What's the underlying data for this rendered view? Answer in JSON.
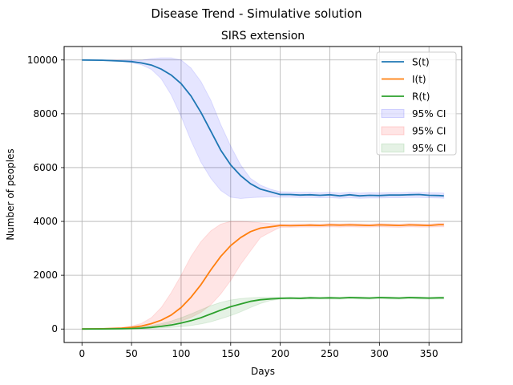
{
  "chart_data": {
    "type": "line",
    "suptitle": "Disease Trend - Simulative solution",
    "title": "SIRS extension",
    "xlabel": "Days",
    "ylabel": "Number of peoples",
    "xlim": [
      -18,
      383
    ],
    "ylim": [
      -500,
      10500
    ],
    "xticks": [
      0,
      50,
      100,
      150,
      200,
      250,
      300,
      350
    ],
    "yticks": [
      0,
      2000,
      4000,
      6000,
      8000,
      10000
    ],
    "grid": true,
    "legend_position": "top-right",
    "series": [
      {
        "name": "S(t)",
        "color": "#1f77b4",
        "x": [
          0,
          20,
          40,
          50,
          60,
          70,
          80,
          90,
          100,
          110,
          120,
          130,
          140,
          150,
          160,
          170,
          180,
          190,
          200,
          210,
          220,
          230,
          240,
          250,
          260,
          270,
          280,
          290,
          300,
          310,
          320,
          330,
          340,
          350,
          360,
          365
        ],
        "values": [
          10000,
          9990,
          9960,
          9940,
          9890,
          9810,
          9660,
          9440,
          9120,
          8660,
          8050,
          7350,
          6650,
          6100,
          5700,
          5400,
          5200,
          5100,
          5000,
          5000,
          4980,
          4990,
          4970,
          4990,
          4950,
          4990,
          4950,
          4970,
          4960,
          4980,
          4980,
          4990,
          5000,
          4970,
          4960,
          4950
        ],
        "ci_low": [
          10000,
          9980,
          9940,
          9900,
          9820,
          9650,
          9300,
          8700,
          7900,
          7000,
          6200,
          5600,
          5150,
          4900,
          4850,
          4880,
          4900,
          4920,
          4900,
          4900,
          4890,
          4890,
          4880,
          4890,
          4860,
          4880,
          4860,
          4870,
          4870,
          4880,
          4880,
          4890,
          4890,
          4880,
          4870,
          4860
        ],
        "ci_high": [
          10000,
          10000,
          9990,
          9990,
          9990,
          10050,
          10080,
          10080,
          10000,
          9700,
          9200,
          8500,
          7600,
          6800,
          6100,
          5600,
          5350,
          5200,
          5100,
          5090,
          5080,
          5080,
          5070,
          5080,
          5050,
          5080,
          5050,
          5070,
          5060,
          5070,
          5070,
          5080,
          5080,
          5070,
          5060,
          5050
        ]
      },
      {
        "name": "I(t)",
        "color": "#ff7f0e",
        "x": [
          0,
          20,
          40,
          50,
          60,
          70,
          80,
          90,
          100,
          110,
          120,
          130,
          140,
          150,
          160,
          170,
          180,
          190,
          200,
          210,
          220,
          230,
          240,
          250,
          260,
          270,
          280,
          290,
          300,
          310,
          320,
          330,
          340,
          350,
          360,
          365
        ],
        "values": [
          0,
          10,
          30,
          60,
          110,
          200,
          330,
          520,
          800,
          1180,
          1650,
          2200,
          2700,
          3100,
          3400,
          3620,
          3750,
          3800,
          3850,
          3840,
          3850,
          3860,
          3850,
          3870,
          3860,
          3870,
          3860,
          3850,
          3870,
          3860,
          3850,
          3870,
          3860,
          3850,
          3880,
          3880
        ],
        "ci_low": [
          0,
          5,
          15,
          30,
          55,
          90,
          140,
          210,
          300,
          430,
          620,
          900,
          1300,
          1800,
          2400,
          2900,
          3400,
          3600,
          3780,
          3780,
          3790,
          3790,
          3790,
          3800,
          3790,
          3800,
          3790,
          3790,
          3800,
          3790,
          3780,
          3800,
          3790,
          3790,
          3800,
          3800
        ],
        "ci_high": [
          5,
          20,
          60,
          110,
          210,
          420,
          800,
          1350,
          2000,
          2700,
          3250,
          3650,
          3900,
          4000,
          4000,
          3980,
          3950,
          3920,
          3900,
          3900,
          3910,
          3910,
          3900,
          3920,
          3910,
          3920,
          3910,
          3900,
          3920,
          3910,
          3900,
          3920,
          3910,
          3900,
          3930,
          3930
        ]
      },
      {
        "name": "R(t)",
        "color": "#2ca02c",
        "x": [
          0,
          20,
          40,
          50,
          60,
          70,
          80,
          90,
          100,
          110,
          120,
          130,
          140,
          150,
          160,
          170,
          180,
          190,
          200,
          210,
          220,
          230,
          240,
          250,
          260,
          270,
          280,
          290,
          300,
          310,
          320,
          330,
          340,
          350,
          360,
          365
        ],
        "values": [
          0,
          3,
          10,
          20,
          35,
          60,
          100,
          150,
          220,
          310,
          420,
          560,
          700,
          830,
          930,
          1030,
          1090,
          1120,
          1140,
          1150,
          1140,
          1160,
          1150,
          1160,
          1150,
          1170,
          1160,
          1150,
          1170,
          1160,
          1150,
          1170,
          1160,
          1150,
          1160,
          1160
        ],
        "ci_low": [
          0,
          0,
          3,
          8,
          15,
          25,
          40,
          60,
          90,
          130,
          190,
          270,
          380,
          500,
          640,
          800,
          950,
          1060,
          1110,
          1120,
          1110,
          1120,
          1120,
          1120,
          1110,
          1130,
          1120,
          1110,
          1130,
          1120,
          1110,
          1130,
          1120,
          1110,
          1120,
          1120
        ],
        "ci_high": [
          0,
          8,
          25,
          45,
          80,
          130,
          200,
          300,
          420,
          560,
          720,
          870,
          990,
          1080,
          1130,
          1160,
          1180,
          1180,
          1180,
          1180,
          1180,
          1190,
          1180,
          1190,
          1180,
          1200,
          1190,
          1180,
          1200,
          1190,
          1180,
          1200,
          1190,
          1180,
          1190,
          1190
        ]
      }
    ],
    "ci_bands": [
      {
        "name": "95% CI",
        "color": "#0000ff",
        "series": "S(t)"
      },
      {
        "name": "95% CI",
        "color": "#ff0000",
        "series": "I(t)"
      },
      {
        "name": "95% CI",
        "color": "#008000",
        "series": "R(t)"
      }
    ]
  }
}
